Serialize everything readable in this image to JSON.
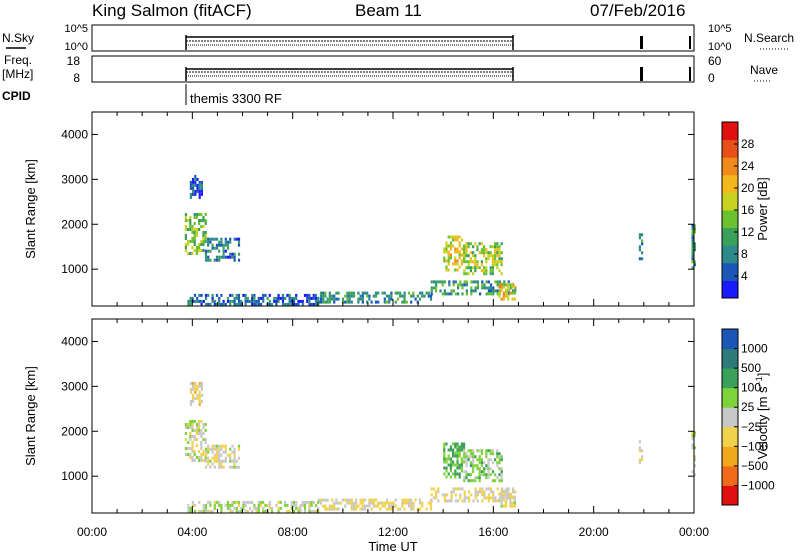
{
  "header": {
    "station": "King Salmon (fitACF)",
    "beam": "Beam 11",
    "date": "07/Feb/2016"
  },
  "top_panels": {
    "nsky_label": "N.Sky",
    "nsearch_label": "N.Search",
    "freq_label": "Freq.",
    "freq_unit": "[MHz]",
    "nave_label": "Nave",
    "cpid_label": "CPID",
    "cpid_text": "themis 3300 RF",
    "nsky_ticks": [
      "10^5",
      "10^0"
    ],
    "nsearch_ticks": [
      "10^5",
      "10^0"
    ],
    "freq_ticks": [
      "18",
      "8"
    ],
    "nave_ticks": [
      "60",
      "0"
    ]
  },
  "time_axis": {
    "title": "Time UT",
    "ticks": [
      "00:00",
      "04:00",
      "08:00",
      "12:00",
      "16:00",
      "20:00",
      "00:00"
    ],
    "range_hours": [
      0,
      24
    ]
  },
  "colors": {
    "axis": "#000000"
  },
  "chart_data": [
    {
      "type": "heatmap",
      "name": "power",
      "ylabel": "Slant Range [km]",
      "yticks": [
        "4000",
        "3000",
        "2000",
        "1000"
      ],
      "ylim": [
        180,
        4500
      ],
      "colorbar": {
        "label": "Power [dB]",
        "ticks": [
          "28",
          "24",
          "20",
          "16",
          "12",
          "8",
          "4"
        ],
        "range": [
          0,
          32
        ],
        "colors": [
          "#1a1aff",
          "#1c57b8",
          "#2c8a8a",
          "#3aa05a",
          "#6cc22e",
          "#c8d222",
          "#f2b81c",
          "#f08a1a",
          "#e8501a",
          "#e01010"
        ]
      },
      "regions": [
        {
          "t0": 3.7,
          "t1": 4.5,
          "r0": 1350,
          "r1": 2250,
          "v": 14
        },
        {
          "t0": 4.5,
          "t1": 5.9,
          "r0": 1200,
          "r1": 1700,
          "v": 7
        },
        {
          "t0": 3.9,
          "t1": 4.4,
          "r0": 2600,
          "r1": 3100,
          "v": 5
        },
        {
          "t0": 14.0,
          "t1": 14.8,
          "r0": 1000,
          "r1": 1750,
          "v": 18
        },
        {
          "t0": 14.8,
          "t1": 16.3,
          "r0": 900,
          "r1": 1600,
          "v": 16
        },
        {
          "t0": 13.5,
          "t1": 16.9,
          "r0": 450,
          "r1": 750,
          "v": 10
        },
        {
          "t0": 16.2,
          "t1": 16.9,
          "r0": 300,
          "r1": 700,
          "v": 20
        },
        {
          "t0": 9.0,
          "t1": 13.5,
          "r0": 250,
          "r1": 500,
          "v": 9
        },
        {
          "t0": 3.8,
          "t1": 9.0,
          "r0": 200,
          "r1": 450,
          "v": 6
        },
        {
          "t0": 21.8,
          "t1": 21.9,
          "r0": 1250,
          "r1": 1800,
          "v": 10
        },
        {
          "t0": 23.9,
          "t1": 24.0,
          "r0": 1000,
          "r1": 2000,
          "v": 10
        }
      ]
    },
    {
      "type": "heatmap",
      "name": "velocity",
      "ylabel": "Slant Range [km]",
      "yticks": [
        "4000",
        "3000",
        "2000",
        "1000"
      ],
      "ylim": [
        180,
        4500
      ],
      "colorbar": {
        "label": "Velocity [m s^-1]",
        "ticks": [
          "1000",
          "500",
          "100",
          "25",
          "−25",
          "−100",
          "−500",
          "−1000"
        ],
        "range": [
          -1200,
          1200
        ],
        "colors": [
          "#e01010",
          "#f06a1a",
          "#f2a81c",
          "#f2d24a",
          "#c8c8c8",
          "#7ed23a",
          "#3aa05a",
          "#2c7a7a",
          "#1c57b8"
        ]
      },
      "regions": [
        {
          "t0": 3.7,
          "t1": 4.5,
          "r0": 1350,
          "r1": 2250,
          "v": 0
        },
        {
          "t0": 4.5,
          "t1": 5.9,
          "r0": 1200,
          "r1": 1700,
          "v": -60
        },
        {
          "t0": 3.9,
          "t1": 4.4,
          "r0": 2600,
          "r1": 3100,
          "v": -200
        },
        {
          "t0": 14.0,
          "t1": 14.8,
          "r0": 1000,
          "r1": 1750,
          "v": 400
        },
        {
          "t0": 14.8,
          "t1": 16.3,
          "r0": 900,
          "r1": 1600,
          "v": 250
        },
        {
          "t0": 13.5,
          "t1": 16.9,
          "r0": 450,
          "r1": 750,
          "v": -150
        },
        {
          "t0": 16.2,
          "t1": 16.9,
          "r0": 300,
          "r1": 700,
          "v": -80
        },
        {
          "t0": 9.0,
          "t1": 13.5,
          "r0": 250,
          "r1": 500,
          "v": -120
        },
        {
          "t0": 3.8,
          "t1": 9.0,
          "r0": 200,
          "r1": 450,
          "v": 60
        },
        {
          "t0": 21.8,
          "t1": 21.9,
          "r0": 1250,
          "r1": 1800,
          "v": 0
        },
        {
          "t0": 23.9,
          "t1": 24.0,
          "r0": 1000,
          "r1": 2000,
          "v": 0
        }
      ]
    }
  ]
}
